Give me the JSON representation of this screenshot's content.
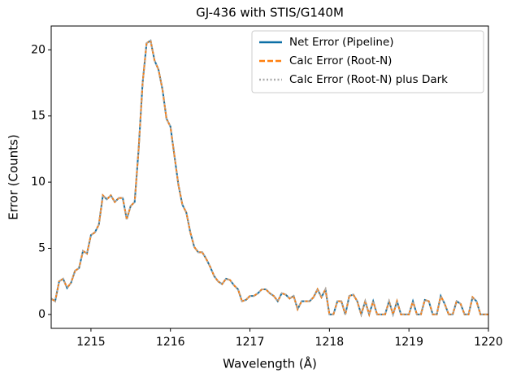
{
  "chart_data": {
    "type": "line",
    "title": "GJ-436 with STIS/G140M",
    "xlabel": "Wavelength (Å)",
    "ylabel": "Error (Counts)",
    "x": [
      1214.5,
      1214.55,
      1214.6,
      1214.65,
      1214.7,
      1214.75,
      1214.8,
      1214.85,
      1214.9,
      1214.95,
      1215.0,
      1215.05,
      1215.1,
      1215.15,
      1215.2,
      1215.25,
      1215.3,
      1215.35,
      1215.4,
      1215.45,
      1215.5,
      1215.55,
      1215.6,
      1215.65,
      1215.7,
      1215.75,
      1215.8,
      1215.85,
      1215.9,
      1215.95,
      1216.0,
      1216.05,
      1216.1,
      1216.15,
      1216.2,
      1216.25,
      1216.3,
      1216.35,
      1216.4,
      1216.45,
      1216.5,
      1216.55,
      1216.6,
      1216.65,
      1216.7,
      1216.75,
      1216.8,
      1216.85,
      1216.9,
      1216.95,
      1217.0,
      1217.05,
      1217.1,
      1217.15,
      1217.2,
      1217.25,
      1217.3,
      1217.35,
      1217.4,
      1217.45,
      1217.5,
      1217.55,
      1217.6,
      1217.65,
      1217.7,
      1217.75,
      1217.8,
      1217.85,
      1217.9,
      1217.95,
      1218.0,
      1218.05,
      1218.1,
      1218.15,
      1218.2,
      1218.25,
      1218.3,
      1218.35,
      1218.4,
      1218.45,
      1218.5,
      1218.55,
      1218.6,
      1218.65,
      1218.7,
      1218.75,
      1218.8,
      1218.85,
      1218.9,
      1218.95,
      1219.0,
      1219.05,
      1219.1,
      1219.15,
      1219.2,
      1219.25,
      1219.3,
      1219.35,
      1219.4,
      1219.45,
      1219.5,
      1219.55,
      1219.6,
      1219.65,
      1219.7,
      1219.75,
      1219.8,
      1219.85,
      1219.9,
      1219.95,
      1220.0
    ],
    "series": [
      {
        "name": "Net Error (Pipeline)",
        "color": "#0c6fa6",
        "linestyle": "solid",
        "values": [
          1.2,
          1.0,
          2.5,
          2.7,
          2.0,
          2.4,
          3.3,
          3.5,
          4.8,
          4.6,
          6.0,
          6.2,
          6.8,
          9.0,
          8.7,
          9.0,
          8.5,
          8.8,
          8.8,
          7.2,
          8.2,
          8.5,
          12.5,
          17.5,
          20.5,
          20.7,
          19.2,
          18.5,
          17.0,
          14.8,
          14.2,
          12.0,
          9.8,
          8.3,
          7.7,
          6.2,
          5.1,
          4.7,
          4.7,
          4.2,
          3.6,
          2.9,
          2.5,
          2.3,
          2.7,
          2.6,
          2.2,
          1.9,
          1.0,
          1.1,
          1.4,
          1.4,
          1.6,
          1.9,
          1.9,
          1.6,
          1.4,
          1.0,
          1.6,
          1.5,
          1.2,
          1.4,
          0.4,
          1.0,
          1.0,
          1.0,
          1.3,
          1.9,
          1.3,
          1.9,
          0,
          0,
          1.0,
          1.0,
          0,
          1.4,
          1.5,
          1.0,
          0,
          1.0,
          0,
          1.0,
          0,
          0,
          0,
          1.0,
          0,
          1.0,
          0,
          0,
          0,
          1.0,
          0,
          0,
          1.1,
          1.0,
          0,
          0,
          1.4,
          0.8,
          0,
          0,
          1.0,
          0.8,
          0,
          0,
          1.3,
          1.0,
          0,
          0,
          0
        ]
      },
      {
        "name": "Calc Error (Root-N)",
        "color": "#ff7f0e",
        "linestyle": "dashed",
        "values": [
          1.2,
          1.0,
          2.5,
          2.7,
          2.0,
          2.4,
          3.3,
          3.5,
          4.8,
          4.6,
          6.0,
          6.2,
          6.8,
          9.0,
          8.7,
          9.0,
          8.5,
          8.8,
          8.8,
          7.2,
          8.2,
          8.5,
          12.5,
          17.5,
          20.5,
          20.7,
          19.2,
          18.5,
          17.0,
          14.8,
          14.2,
          12.0,
          9.8,
          8.3,
          7.7,
          6.2,
          5.1,
          4.7,
          4.7,
          4.2,
          3.6,
          2.9,
          2.5,
          2.3,
          2.7,
          2.6,
          2.2,
          1.9,
          1.0,
          1.1,
          1.4,
          1.4,
          1.6,
          1.9,
          1.9,
          1.6,
          1.4,
          1.0,
          1.6,
          1.5,
          1.2,
          1.4,
          0.4,
          1.0,
          1.0,
          1.0,
          1.3,
          1.9,
          1.3,
          1.9,
          0,
          0,
          1.0,
          1.0,
          0,
          1.4,
          1.5,
          1.0,
          0,
          1.0,
          0,
          1.0,
          0,
          0,
          0,
          1.0,
          0,
          1.0,
          0,
          0,
          0,
          1.0,
          0,
          0,
          1.1,
          1.0,
          0,
          0,
          1.4,
          0.8,
          0,
          0,
          1.0,
          0.8,
          0,
          0,
          1.3,
          1.0,
          0,
          0,
          0
        ]
      },
      {
        "name": "Calc Error (Root-N) plus Dark",
        "color": "#aaaaaa",
        "linestyle": "dotted",
        "values": [
          1.2,
          1.0,
          2.5,
          2.7,
          2.0,
          2.4,
          3.3,
          3.5,
          4.8,
          4.6,
          6.0,
          6.2,
          6.8,
          9.0,
          8.7,
          9.0,
          8.5,
          8.8,
          8.8,
          7.2,
          8.2,
          8.5,
          12.5,
          17.5,
          20.5,
          20.7,
          19.2,
          18.5,
          17.0,
          14.8,
          14.2,
          12.0,
          9.8,
          8.3,
          7.7,
          6.2,
          5.1,
          4.7,
          4.7,
          4.2,
          3.6,
          2.9,
          2.5,
          2.3,
          2.7,
          2.6,
          2.2,
          1.9,
          1.0,
          1.1,
          1.4,
          1.4,
          1.6,
          1.9,
          1.9,
          1.6,
          1.4,
          1.0,
          1.6,
          1.5,
          1.2,
          1.4,
          0.4,
          1.0,
          1.0,
          1.0,
          1.3,
          1.9,
          1.3,
          1.9,
          0,
          0,
          1.0,
          1.0,
          0,
          1.4,
          1.5,
          1.0,
          0,
          1.0,
          0,
          1.0,
          0,
          0,
          0,
          1.0,
          0,
          1.0,
          0,
          0,
          0,
          1.0,
          0,
          0,
          1.1,
          1.0,
          0,
          0,
          1.4,
          0.8,
          0,
          0,
          1.0,
          0.8,
          0,
          0,
          1.3,
          1.0,
          0,
          0,
          0
        ]
      }
    ],
    "xlim": [
      1214.5,
      1220
    ],
    "xticks": [
      1215,
      1216,
      1217,
      1218,
      1219,
      1220
    ],
    "ylim": [
      -1.05,
      21.8
    ],
    "yticks": [
      0,
      5,
      10,
      15,
      20
    ],
    "legend": "upper right",
    "grid": false
  }
}
